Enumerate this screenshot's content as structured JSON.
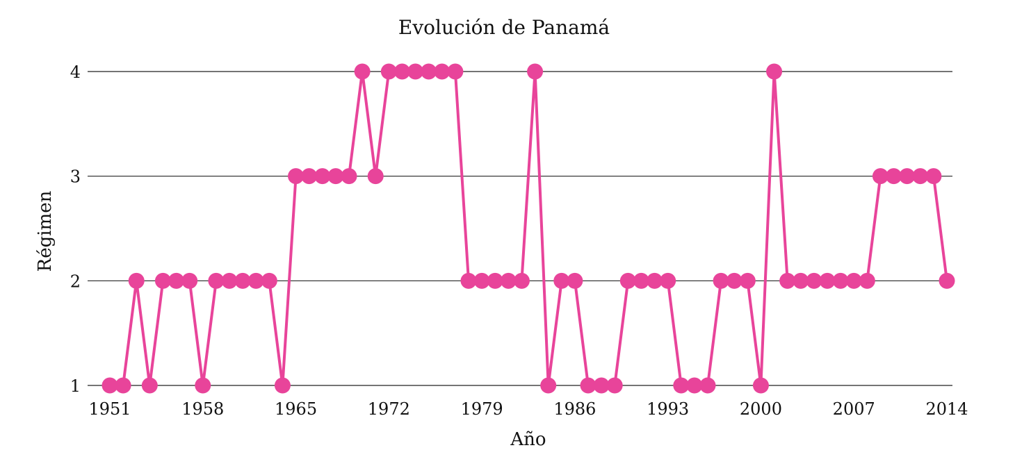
{
  "chart_data": {
    "type": "line",
    "title": "Evolución de Panamá",
    "xlabel": "Año",
    "ylabel": "Régimen",
    "xlim": [
      1951,
      2014
    ],
    "ylim": [
      1,
      4
    ],
    "x_ticks": [
      1951,
      1958,
      1965,
      1972,
      1979,
      1986,
      1993,
      2000,
      2007,
      2014
    ],
    "y_ticks": [
      1,
      2,
      3,
      4
    ],
    "grid": "horizontal",
    "color": "#E8449A",
    "x": [
      1951,
      1952,
      1953,
      1954,
      1955,
      1956,
      1957,
      1958,
      1959,
      1960,
      1961,
      1962,
      1963,
      1964,
      1965,
      1966,
      1967,
      1968,
      1969,
      1970,
      1971,
      1972,
      1973,
      1974,
      1975,
      1976,
      1977,
      1978,
      1979,
      1980,
      1981,
      1982,
      1983,
      1984,
      1985,
      1986,
      1987,
      1988,
      1989,
      1990,
      1991,
      1992,
      1993,
      1994,
      1995,
      1996,
      1997,
      1998,
      1999,
      2000,
      2001,
      2002,
      2003,
      2004,
      2005,
      2006,
      2007,
      2008,
      2009,
      2010,
      2011,
      2012,
      2013,
      2014
    ],
    "values": [
      1,
      1,
      2,
      1,
      2,
      2,
      2,
      1,
      2,
      2,
      2,
      2,
      2,
      1,
      3,
      3,
      3,
      3,
      3,
      4,
      3,
      4,
      4,
      4,
      4,
      4,
      4,
      2,
      2,
      2,
      2,
      2,
      4,
      1,
      2,
      2,
      1,
      1,
      1,
      2,
      2,
      2,
      2,
      1,
      1,
      1,
      2,
      2,
      2,
      1,
      4,
      2,
      2,
      2,
      2,
      2,
      2,
      2,
      3,
      3,
      3,
      3,
      3,
      2
    ]
  }
}
